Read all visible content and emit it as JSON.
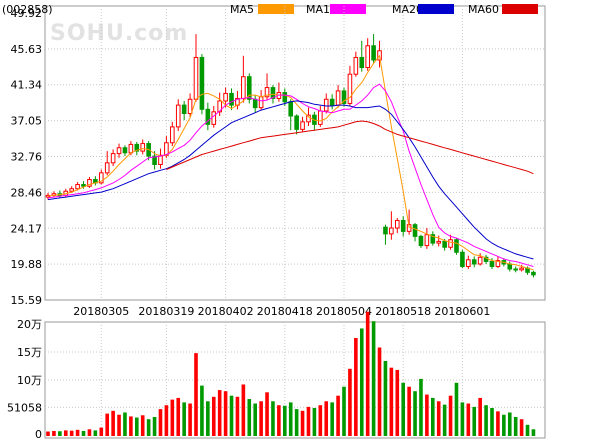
{
  "header": {
    "code": "(002858)",
    "watermark": "SOHU.com",
    "legend": [
      {
        "label": "MA5",
        "color": "#ff9900"
      },
      {
        "label": "MA10",
        "color": "#ff00ff"
      },
      {
        "label": "MA20",
        "color": "#0000cc"
      },
      {
        "label": "MA60",
        "color": "#dd0000"
      }
    ]
  },
  "colors": {
    "up": "#ff0000",
    "down": "#009900"
  },
  "chart_data": {
    "type": "candlestick",
    "price_axis": {
      "ticks": [
        49.92,
        45.63,
        41.34,
        37.05,
        32.76,
        28.46,
        24.17,
        19.88,
        15.59
      ],
      "tick_labels": [
        "49.92",
        "45.63",
        "41.34",
        "37.05",
        "32.76",
        "28.46",
        "24.17",
        "19.88",
        "15.59"
      ],
      "range": [
        15.59,
        49.92
      ]
    },
    "x_labels": [
      "20180305",
      "20180319",
      "20180402",
      "20180418",
      "20180504",
      "20180518",
      "20180601"
    ],
    "x_label_index": [
      9,
      20,
      30,
      40,
      50,
      60,
      70
    ],
    "volume_axis": {
      "tick_labels": [
        "20万",
        "15万",
        "10万",
        "51058",
        "0"
      ],
      "ticks": [
        200000,
        150000,
        100000,
        51058,
        0
      ]
    },
    "candles": [
      [
        27.9,
        28.1,
        28.4,
        27.6
      ],
      [
        28.1,
        28.3,
        28.6,
        27.9
      ],
      [
        28.3,
        28.1,
        28.7,
        27.8
      ],
      [
        28.1,
        28.6,
        28.9,
        27.9
      ],
      [
        28.6,
        28.9,
        29.2,
        28.4
      ],
      [
        28.9,
        29.4,
        29.7,
        28.7
      ],
      [
        29.4,
        29.2,
        29.8,
        28.9
      ],
      [
        29.2,
        30.0,
        30.3,
        29.0
      ],
      [
        30.0,
        29.6,
        30.4,
        29.3
      ],
      [
        29.6,
        30.8,
        31.2,
        29.4
      ],
      [
        30.8,
        32.0,
        33.4,
        30.5
      ],
      [
        32.0,
        33.1,
        33.6,
        31.6
      ],
      [
        33.1,
        33.8,
        34.3,
        32.6
      ],
      [
        33.8,
        33.2,
        34.1,
        32.8
      ],
      [
        33.2,
        34.2,
        34.6,
        32.9
      ],
      [
        34.2,
        33.4,
        34.5,
        32.9
      ],
      [
        33.4,
        34.3,
        34.8,
        33.0
      ],
      [
        34.3,
        32.8,
        34.6,
        32.3
      ],
      [
        32.8,
        31.8,
        33.4,
        31.2
      ],
      [
        31.8,
        32.9,
        33.7,
        31.3
      ],
      [
        32.9,
        34.4,
        35.2,
        32.6
      ],
      [
        34.4,
        36.3,
        36.9,
        34.0
      ],
      [
        36.3,
        38.9,
        39.6,
        35.8
      ],
      [
        38.9,
        37.9,
        39.4,
        37.1
      ],
      [
        37.9,
        39.6,
        40.3,
        37.5
      ],
      [
        39.6,
        44.6,
        47.4,
        39.3
      ],
      [
        44.6,
        38.4,
        45.0,
        37.8
      ],
      [
        38.4,
        36.6,
        39.2,
        35.9
      ],
      [
        36.6,
        38.1,
        38.8,
        36.2
      ],
      [
        38.1,
        39.4,
        40.4,
        37.6
      ],
      [
        39.4,
        40.3,
        41.0,
        38.6
      ],
      [
        40.3,
        38.9,
        40.9,
        38.3
      ],
      [
        38.9,
        39.7,
        40.6,
        38.4
      ],
      [
        39.7,
        42.3,
        44.8,
        39.2
      ],
      [
        42.3,
        39.6,
        42.7,
        39.1
      ],
      [
        39.6,
        38.6,
        40.1,
        38.0
      ],
      [
        38.6,
        39.9,
        40.7,
        38.3
      ],
      [
        39.9,
        41.0,
        42.7,
        39.5
      ],
      [
        41.0,
        39.7,
        41.3,
        39.1
      ],
      [
        39.7,
        40.4,
        41.6,
        39.3
      ],
      [
        40.4,
        39.3,
        40.9,
        38.8
      ],
      [
        39.3,
        37.6,
        39.6,
        35.9
      ],
      [
        37.6,
        36.0,
        37.8,
        35.4
      ],
      [
        36.0,
        36.9,
        37.5,
        35.7
      ],
      [
        36.9,
        37.7,
        38.6,
        36.4
      ],
      [
        37.7,
        36.6,
        38.1,
        35.9
      ],
      [
        36.6,
        38.2,
        38.8,
        36.3
      ],
      [
        38.2,
        39.6,
        40.3,
        37.9
      ],
      [
        39.6,
        38.9,
        40.2,
        38.4
      ],
      [
        38.9,
        40.6,
        41.3,
        38.6
      ],
      [
        40.6,
        39.1,
        41.0,
        38.7
      ],
      [
        39.1,
        42.6,
        43.6,
        38.8
      ],
      [
        42.6,
        44.6,
        45.3,
        42.3
      ],
      [
        44.6,
        43.4,
        46.6,
        42.9
      ],
      [
        43.4,
        46.0,
        46.9,
        43.0
      ],
      [
        46.0,
        44.3,
        47.4,
        43.9
      ],
      [
        44.3,
        45.4,
        46.6,
        43.4
      ],
      [
        24.3,
        23.5,
        24.6,
        22.2
      ],
      [
        23.5,
        24.2,
        26.2,
        22.8
      ],
      [
        24.2,
        25.1,
        25.4,
        23.6
      ],
      [
        25.1,
        23.8,
        25.6,
        23.2
      ],
      [
        23.8,
        24.6,
        26.4,
        23.4
      ],
      [
        24.6,
        23.2,
        24.8,
        22.6
      ],
      [
        23.2,
        22.1,
        23.4,
        21.8
      ],
      [
        22.1,
        23.4,
        24.2,
        21.7
      ],
      [
        23.4,
        22.4,
        23.8,
        22.1
      ],
      [
        22.4,
        22.6,
        23.3,
        22.0
      ],
      [
        22.6,
        21.9,
        22.9,
        21.5
      ],
      [
        21.9,
        22.8,
        23.4,
        21.6
      ],
      [
        22.8,
        21.3,
        23.0,
        21.0
      ],
      [
        21.3,
        19.6,
        21.6,
        19.4
      ],
      [
        19.6,
        20.4,
        20.9,
        19.3
      ],
      [
        20.4,
        19.9,
        20.8,
        19.5
      ],
      [
        19.9,
        20.7,
        21.2,
        19.7
      ],
      [
        20.7,
        20.2,
        21.0,
        19.9
      ],
      [
        20.2,
        19.6,
        20.6,
        19.3
      ],
      [
        19.6,
        20.3,
        20.8,
        19.4
      ],
      [
        20.3,
        19.9,
        20.6,
        19.6
      ],
      [
        19.9,
        19.3,
        20.2,
        19.0
      ],
      [
        19.3,
        19.2,
        19.6,
        18.9
      ],
      [
        19.2,
        19.4,
        19.8,
        19.0
      ],
      [
        19.4,
        18.9,
        19.6,
        18.6
      ],
      [
        18.9,
        18.6,
        19.1,
        18.3
      ]
    ],
    "ma5": [
      28.0,
      28.1,
      28.2,
      28.3,
      28.5,
      28.8,
      29.1,
      29.4,
      29.6,
      29.8,
      30.3,
      31.0,
      31.8,
      32.5,
      33.2,
      33.5,
      33.7,
      33.6,
      33.1,
      32.8,
      32.9,
      33.6,
      34.8,
      36.1,
      37.4,
      39.6,
      40.2,
      40.3,
      40.0,
      39.6,
      38.9,
      38.5,
      38.9,
      39.4,
      40.1,
      40.1,
      39.9,
      40.1,
      40.2,
      40.1,
      40.1,
      39.8,
      39.0,
      38.2,
      37.5,
      37.1,
      37.0,
      37.3,
      38.1,
      38.7,
      39.4,
      39.8,
      40.8,
      41.6,
      42.8,
      43.9,
      44.8,
      40.6,
      36.3,
      32.5,
      28.6,
      24.3,
      24.1,
      23.8,
      23.5,
      23.2,
      23.0,
      22.7,
      22.5,
      22.4,
      22.0,
      21.5,
      21.0,
      20.9,
      20.6,
      20.3,
      20.2,
      20.1,
      19.9,
      19.8,
      19.6,
      19.4,
      19.2
    ],
    "ma10": [
      27.8,
      27.9,
      28.0,
      28.1,
      28.2,
      28.3,
      28.4,
      28.6,
      28.8,
      29.0,
      29.3,
      29.6,
      30.0,
      30.5,
      31.1,
      31.6,
      32.1,
      32.6,
      32.7,
      32.8,
      33.0,
      33.3,
      33.7,
      34.1,
      34.7,
      35.6,
      36.4,
      37.0,
      37.6,
      38.2,
      38.9,
      39.3,
      39.6,
      39.7,
      39.8,
      39.6,
      39.4,
      39.5,
      39.8,
      40.1,
      40.1,
      40.0,
      39.6,
      39.1,
      38.7,
      38.5,
      38.2,
      38.1,
      38.0,
      38.2,
      38.4,
      38.4,
      38.9,
      39.4,
      40.1,
      41.0,
      41.4,
      40.6,
      39.3,
      37.5,
      35.8,
      33.4,
      31.4,
      29.4,
      27.6,
      25.8,
      24.3,
      23.6,
      23.2,
      23.0,
      22.7,
      22.4,
      22.0,
      21.7,
      21.4,
      21.1,
      20.8,
      20.5,
      20.3,
      20.2,
      20.0,
      19.8,
      19.6
    ],
    "ma20": [
      27.6,
      27.7,
      27.8,
      27.9,
      28.0,
      28.1,
      28.2,
      28.3,
      28.4,
      28.5,
      28.7,
      28.9,
      29.2,
      29.5,
      29.8,
      30.1,
      30.4,
      30.7,
      30.9,
      31.1,
      31.3,
      31.6,
      32.0,
      32.4,
      32.9,
      33.5,
      34.1,
      34.7,
      35.3,
      35.8,
      36.3,
      36.8,
      37.1,
      37.4,
      37.7,
      38.0,
      38.3,
      38.5,
      38.7,
      38.9,
      39.1,
      39.3,
      39.4,
      39.3,
      39.2,
      39.0,
      38.9,
      38.8,
      38.8,
      38.9,
      38.9,
      38.8,
      38.6,
      38.6,
      38.6,
      38.7,
      38.8,
      38.4,
      37.8,
      36.9,
      36.0,
      35.0,
      33.9,
      32.7,
      31.5,
      30.3,
      29.2,
      28.3,
      27.5,
      26.7,
      25.9,
      25.1,
      24.3,
      23.6,
      22.9,
      22.4,
      22.0,
      21.7,
      21.4,
      21.1,
      20.9,
      20.7,
      20.5
    ],
    "ma60": [
      null,
      null,
      null,
      null,
      null,
      null,
      null,
      null,
      null,
      null,
      null,
      null,
      null,
      null,
      null,
      null,
      null,
      null,
      null,
      null,
      31.2,
      31.5,
      31.8,
      32.1,
      32.4,
      32.7,
      33.0,
      33.2,
      33.4,
      33.6,
      33.8,
      34.0,
      34.2,
      34.4,
      34.6,
      34.8,
      35.0,
      35.1,
      35.2,
      35.3,
      35.4,
      35.5,
      35.6,
      35.7,
      35.8,
      35.9,
      36.0,
      36.1,
      36.2,
      36.3,
      36.5,
      36.7,
      36.9,
      37.0,
      36.9,
      36.7,
      36.4,
      36.0,
      35.7,
      35.4,
      35.2,
      35.0,
      34.8,
      34.6,
      34.4,
      34.2,
      34.0,
      33.8,
      33.6,
      33.4,
      33.2,
      33.0,
      32.8,
      32.6,
      32.4,
      32.2,
      32.0,
      31.8,
      31.6,
      31.4,
      31.2,
      31.0,
      30.7
    ],
    "volumes": [
      8000,
      9000,
      8500,
      10000,
      9500,
      11000,
      9000,
      12000,
      10000,
      15000,
      40000,
      45000,
      38000,
      42000,
      35000,
      33000,
      37000,
      30000,
      34000,
      48000,
      55000,
      65000,
      68000,
      60000,
      58000,
      148000,
      90000,
      62000,
      70000,
      82000,
      80000,
      72000,
      70000,
      92000,
      66000,
      58000,
      62000,
      78000,
      62000,
      55000,
      54000,
      60000,
      48000,
      45000,
      52000,
      50000,
      55000,
      62000,
      60000,
      72000,
      88000,
      120000,
      175000,
      192000,
      222000,
      205000,
      158000,
      134000,
      122000,
      118000,
      95000,
      88000,
      80000,
      102000,
      74000,
      68000,
      62000,
      56000,
      72000,
      95000,
      60000,
      58000,
      52000,
      68000,
      55000,
      50000,
      44000,
      38000,
      42000,
      34000,
      30000,
      20000,
      12000
    ]
  }
}
